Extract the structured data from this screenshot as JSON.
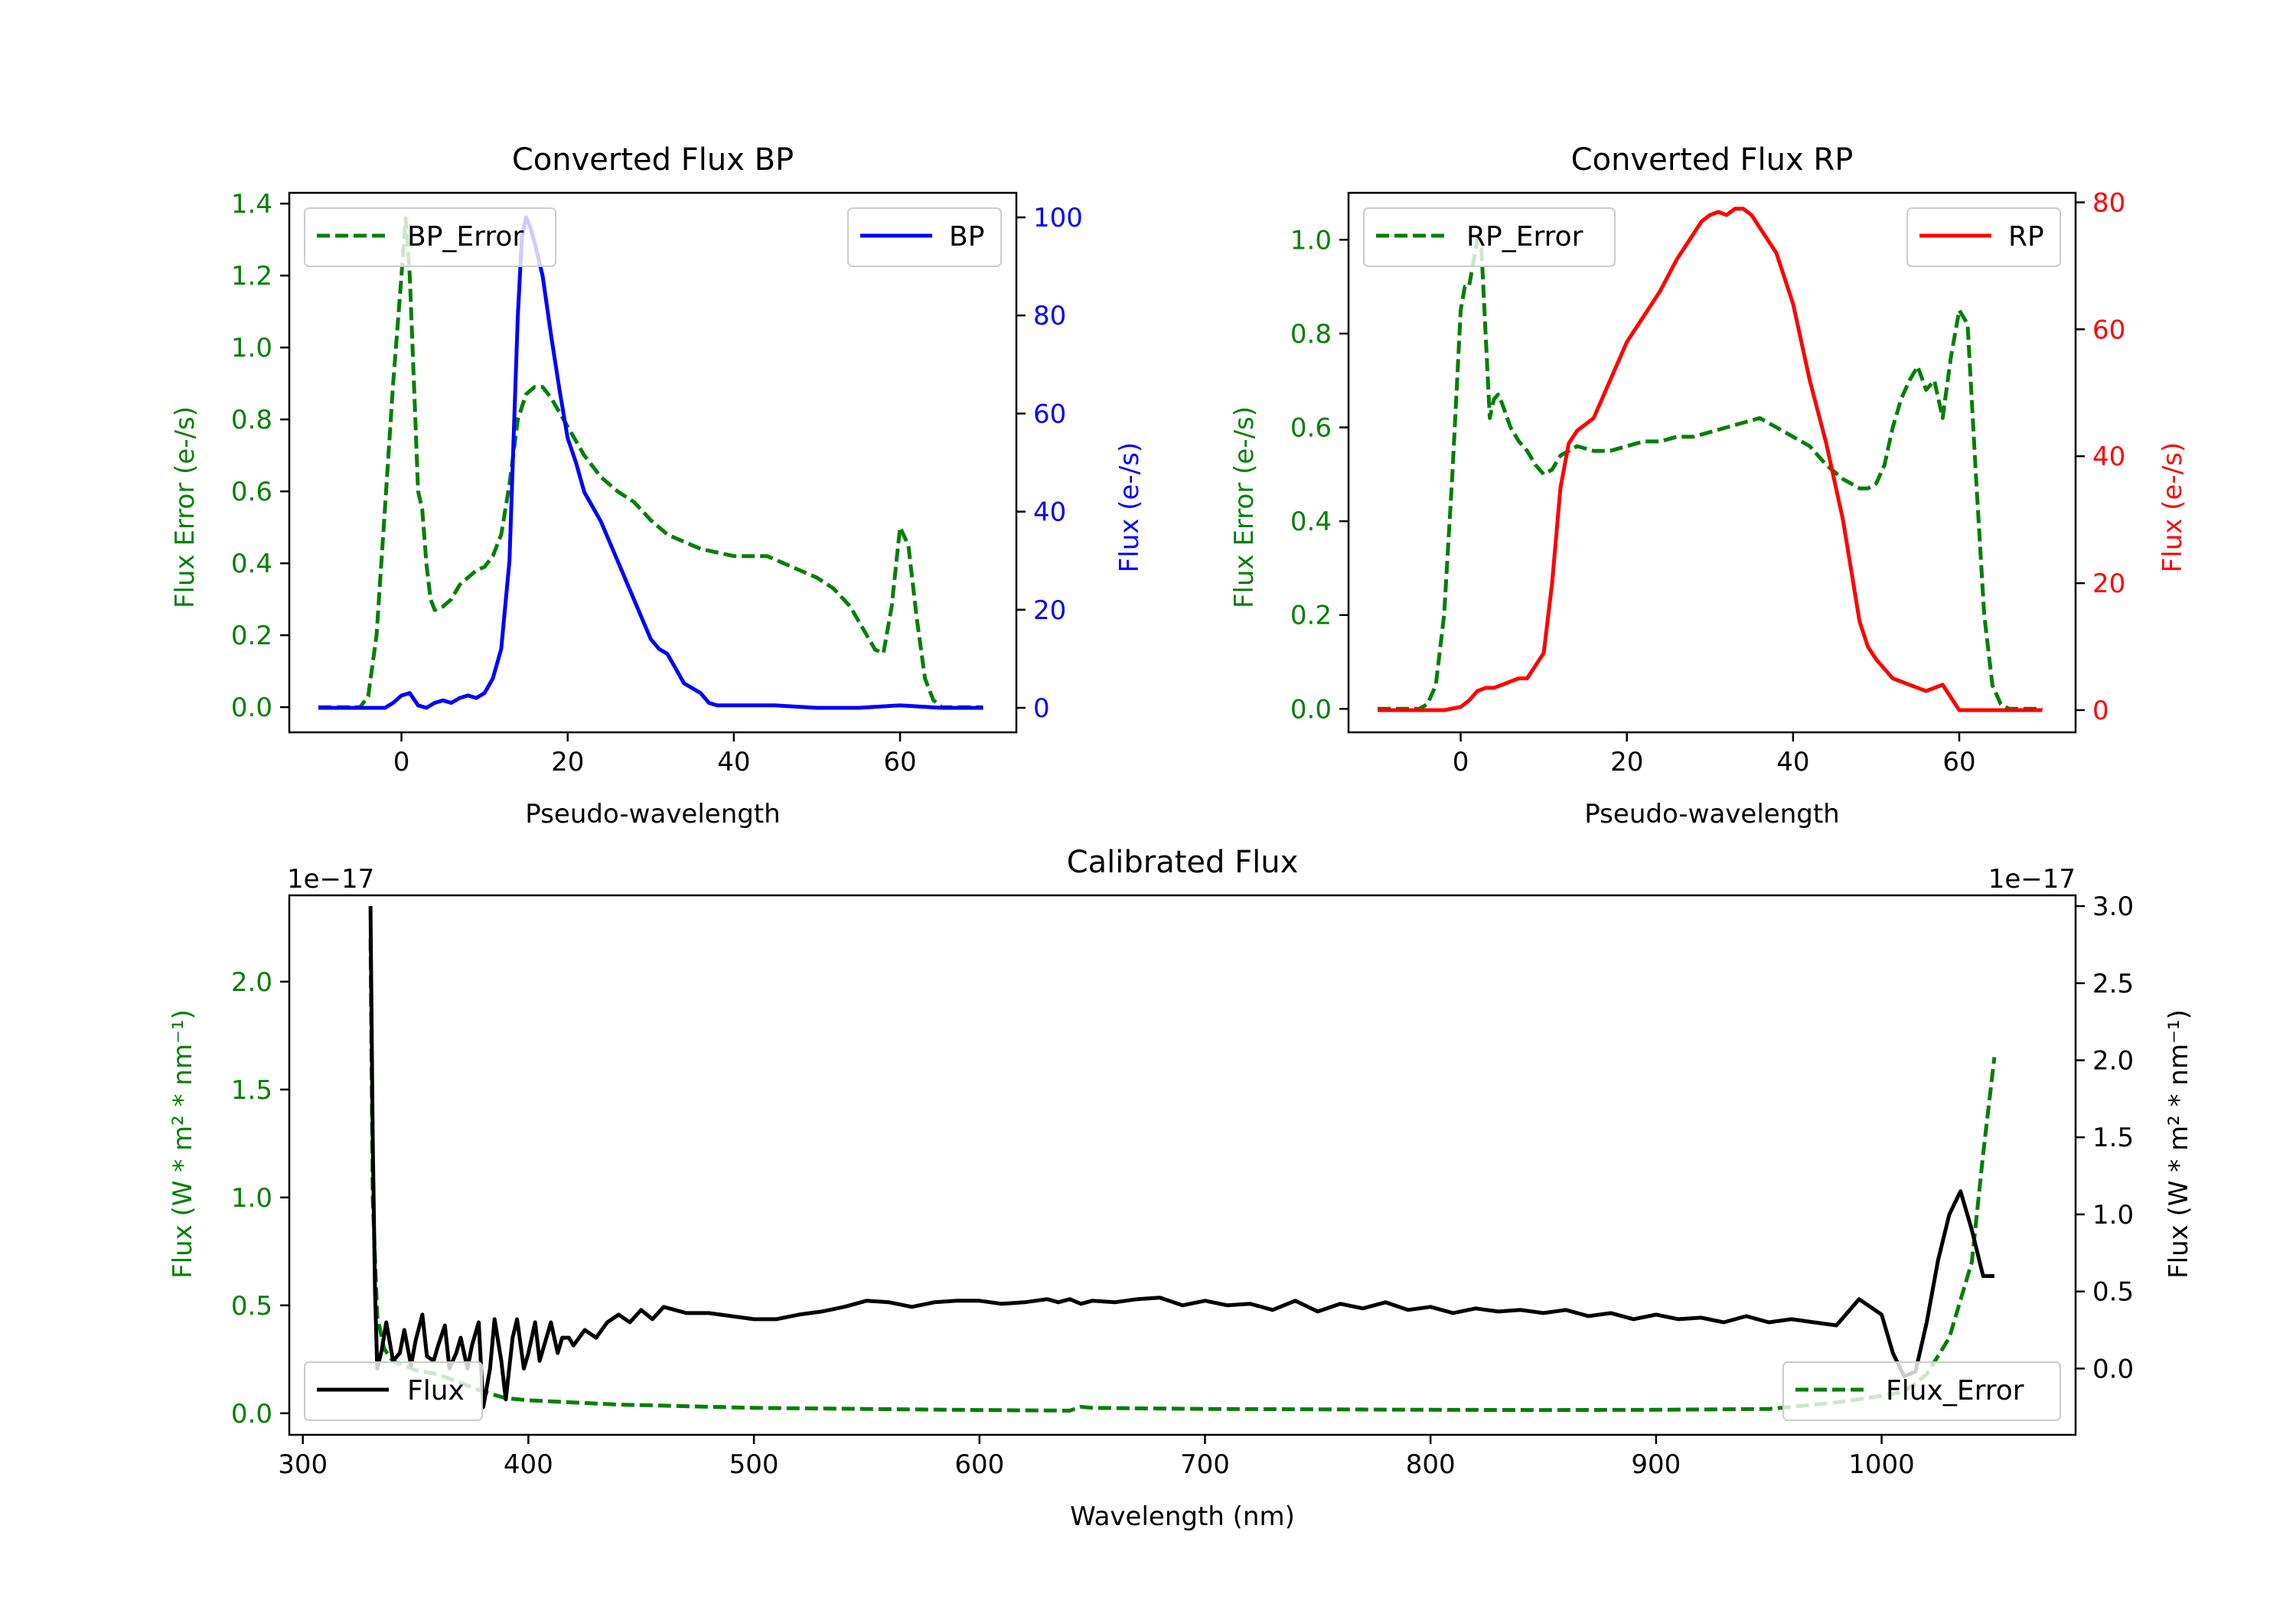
{
  "colors": {
    "error": "#008000",
    "bp": "#0000ff",
    "rp": "#ff0000",
    "flux": "#000000",
    "axis": "#000000"
  },
  "chart_data": [
    {
      "type": "line",
      "title": "Converted Flux BP",
      "xlabel": "Pseudo-wavelength",
      "ylabel_left": "Flux Error (e-/s)",
      "ylabel_right": "Flux (e-/s)",
      "xlim": [
        -13.5,
        74
      ],
      "ylim_left": [
        -0.07,
        1.43
      ],
      "ylim_right": [
        -5,
        105
      ],
      "xticks": [
        0,
        20,
        40,
        60
      ],
      "yticks_left": [
        0.0,
        0.2,
        0.4,
        0.6,
        0.8,
        1.0,
        1.2,
        1.4
      ],
      "yticks_right": [
        0,
        20,
        40,
        60,
        80,
        100
      ],
      "legend_left": "top-left",
      "legend_right": "top-right",
      "series": [
        {
          "name": "BP_Error",
          "axis": "left",
          "style": "dashed",
          "color": "error",
          "x": [
            -10,
            -5,
            -4,
            -3,
            -2,
            -1,
            0,
            0.5,
            1,
            1.5,
            2,
            2.5,
            3,
            3.5,
            4,
            5,
            6,
            7,
            8,
            9,
            10,
            11,
            12,
            13,
            14,
            15,
            16,
            17,
            18,
            19,
            20,
            22,
            24,
            26,
            28,
            30,
            32,
            34,
            36,
            38,
            40,
            42,
            44,
            46,
            48,
            50,
            52,
            54,
            55,
            56,
            57,
            58,
            59,
            60,
            61,
            62,
            63,
            64,
            65,
            70
          ],
          "y": [
            0,
            0,
            0.03,
            0.2,
            0.55,
            0.9,
            1.2,
            1.36,
            1.2,
            0.9,
            0.6,
            0.55,
            0.4,
            0.3,
            0.27,
            0.28,
            0.3,
            0.34,
            0.36,
            0.38,
            0.39,
            0.42,
            0.48,
            0.62,
            0.8,
            0.87,
            0.89,
            0.89,
            0.86,
            0.82,
            0.78,
            0.7,
            0.64,
            0.6,
            0.57,
            0.52,
            0.48,
            0.46,
            0.44,
            0.43,
            0.42,
            0.42,
            0.42,
            0.4,
            0.38,
            0.36,
            0.33,
            0.28,
            0.24,
            0.2,
            0.16,
            0.15,
            0.28,
            0.5,
            0.45,
            0.25,
            0.08,
            0.02,
            0,
            0
          ]
        },
        {
          "name": "BP",
          "axis": "right",
          "style": "solid",
          "color": "bp",
          "x": [
            -10,
            -2,
            -1,
            0,
            1,
            2,
            3,
            4,
            5,
            6,
            7,
            8,
            9,
            10,
            11,
            12,
            13,
            13.5,
            14,
            14.5,
            15,
            15.5,
            16,
            17,
            18,
            19,
            20,
            21,
            22,
            24,
            26,
            28,
            30,
            31,
            32,
            33,
            34,
            35,
            36,
            37,
            38,
            40,
            45,
            50,
            55,
            60,
            65,
            70
          ],
          "y": [
            0,
            0,
            1,
            2.5,
            3,
            0.5,
            0,
            1,
            1.5,
            1,
            2,
            2.5,
            2,
            3,
            6,
            12,
            30,
            55,
            80,
            96,
            100,
            98,
            95,
            88,
            76,
            65,
            55,
            50,
            44,
            38,
            30,
            22,
            14,
            12,
            11,
            8,
            5,
            4,
            3,
            1,
            0.5,
            0.5,
            0.5,
            0,
            0,
            0.5,
            0,
            0
          ]
        }
      ]
    },
    {
      "type": "line",
      "title": "Converted Flux RP",
      "xlabel": "Pseudo-wavelength",
      "ylabel_left": "Flux Error (e-/s)",
      "ylabel_right": "Flux (e-/s)",
      "xlim": [
        -13.5,
        74
      ],
      "ylim_left": [
        -0.05,
        1.1
      ],
      "ylim_right": [
        -3.5,
        81.5
      ],
      "xticks": [
        0,
        20,
        40,
        60
      ],
      "yticks_left": [
        0.0,
        0.2,
        0.4,
        0.6,
        0.8,
        1.0
      ],
      "yticks_right": [
        0,
        20,
        40,
        60,
        80
      ],
      "legend_left": "top-left",
      "legend_right": "top-right",
      "series": [
        {
          "name": "RP_Error",
          "axis": "left",
          "style": "dashed",
          "color": "error",
          "x": [
            -10,
            -5,
            -4,
            -3,
            -2,
            -1,
            0,
            0.5,
            1,
            1.5,
            2,
            2.5,
            3,
            3.5,
            4,
            4.5,
            5,
            6,
            7,
            8,
            9,
            10,
            11,
            12,
            14,
            16,
            18,
            20,
            22,
            24,
            26,
            28,
            30,
            32,
            34,
            36,
            38,
            40,
            42,
            44,
            46,
            47,
            48,
            49,
            50,
            51,
            52,
            53,
            54,
            55,
            56,
            57,
            58,
            59,
            60,
            61,
            62,
            63,
            64,
            65,
            66,
            70
          ],
          "y": [
            0,
            0,
            0.01,
            0.05,
            0.2,
            0.5,
            0.85,
            0.9,
            0.9,
            0.95,
            1.0,
            0.98,
            0.8,
            0.62,
            0.66,
            0.67,
            0.65,
            0.6,
            0.57,
            0.55,
            0.52,
            0.5,
            0.51,
            0.54,
            0.56,
            0.55,
            0.55,
            0.56,
            0.57,
            0.57,
            0.58,
            0.58,
            0.59,
            0.6,
            0.61,
            0.62,
            0.6,
            0.58,
            0.56,
            0.52,
            0.49,
            0.48,
            0.47,
            0.47,
            0.48,
            0.52,
            0.6,
            0.66,
            0.7,
            0.73,
            0.68,
            0.7,
            0.62,
            0.75,
            0.85,
            0.82,
            0.5,
            0.2,
            0.05,
            0.01,
            0,
            0
          ]
        },
        {
          "name": "RP",
          "axis": "right",
          "style": "solid",
          "color": "rp",
          "x": [
            -10,
            -2,
            0,
            1,
            2,
            3,
            4,
            5,
            6,
            7,
            8,
            9,
            10,
            11,
            12,
            13,
            14,
            16,
            18,
            20,
            22,
            24,
            26,
            27,
            28,
            29,
            30,
            31,
            32,
            33,
            34,
            35,
            36,
            38,
            40,
            42,
            44,
            46,
            47,
            48,
            49,
            50,
            52,
            54,
            56,
            58,
            59,
            60,
            62,
            65,
            70
          ],
          "y": [
            0,
            0,
            0.5,
            1.5,
            3,
            3.5,
            3.5,
            4,
            4.5,
            5,
            5,
            7,
            9,
            20,
            35,
            42,
            44,
            46,
            52,
            58,
            62,
            66,
            71,
            73,
            75,
            77,
            78,
            78.5,
            78,
            79,
            79,
            78,
            76,
            72,
            64,
            52,
            42,
            30,
            22,
            14,
            10,
            8,
            5,
            4,
            3,
            4,
            2,
            0,
            0,
            0,
            0
          ]
        }
      ]
    },
    {
      "type": "line",
      "title": "Calibrated Flux",
      "xlabel": "Wavelength (nm)",
      "ylabel_left": "Flux (W * m² * nm⁻¹)",
      "ylabel_right": "Flux (W * m² * nm⁻¹)",
      "offset_left": "1e−17",
      "offset_right": "1e−17",
      "xlim": [
        294,
        1086
      ],
      "ylim_left": [
        -0.1,
        2.4
      ],
      "ylim_right": [
        -0.43,
        3.07
      ],
      "xticks": [
        300,
        400,
        500,
        600,
        700,
        800,
        900,
        1000
      ],
      "yticks_left": [
        0.0,
        0.5,
        1.0,
        1.5,
        2.0
      ],
      "yticks_right": [
        0.0,
        0.5,
        1.0,
        1.5,
        2.0,
        2.5,
        3.0
      ],
      "legend_left": "bottom-left",
      "legend_right": "bottom-right",
      "series": [
        {
          "name": "Flux_Error",
          "axis": "left",
          "style": "dashed",
          "color": "error",
          "x": [
            330,
            331,
            333,
            336,
            340,
            350,
            360,
            370,
            380,
            390,
            400,
            420,
            440,
            460,
            500,
            550,
            600,
            640,
            645,
            650,
            700,
            750,
            800,
            850,
            900,
            950,
            980,
            1000,
            1010,
            1020,
            1030,
            1040,
            1045,
            1050
          ],
          "y": [
            2.2,
            1.0,
            0.45,
            0.3,
            0.24,
            0.2,
            0.18,
            0.14,
            0.1,
            0.07,
            0.06,
            0.05,
            0.04,
            0.035,
            0.025,
            0.02,
            0.015,
            0.012,
            0.03,
            0.025,
            0.02,
            0.018,
            0.016,
            0.015,
            0.016,
            0.02,
            0.05,
            0.08,
            0.1,
            0.18,
            0.35,
            0.7,
            1.2,
            1.65
          ]
        },
        {
          "name": "Flux",
          "axis": "right",
          "style": "solid",
          "color": "flux",
          "x": [
            330,
            331,
            332,
            333,
            335,
            337,
            340,
            343,
            345,
            348,
            350,
            353,
            355,
            358,
            360,
            363,
            365,
            368,
            370,
            373,
            375,
            378,
            380,
            383,
            385,
            388,
            390,
            393,
            395,
            398,
            400,
            403,
            405,
            408,
            410,
            413,
            415,
            418,
            420,
            425,
            430,
            435,
            440,
            445,
            450,
            455,
            460,
            465,
            470,
            480,
            490,
            500,
            510,
            520,
            530,
            540,
            550,
            560,
            570,
            580,
            590,
            600,
            610,
            620,
            630,
            635,
            640,
            645,
            650,
            660,
            670,
            680,
            690,
            700,
            710,
            720,
            730,
            740,
            750,
            760,
            770,
            780,
            790,
            800,
            810,
            820,
            830,
            840,
            850,
            860,
            870,
            880,
            890,
            900,
            910,
            920,
            930,
            940,
            950,
            960,
            970,
            980,
            990,
            1000,
            1005,
            1010,
            1015,
            1020,
            1025,
            1030,
            1035,
            1040,
            1045,
            1050
          ],
          "y": [
            3.0,
            1.5,
            0.5,
            0.0,
            0.12,
            0.3,
            0.05,
            0.1,
            0.25,
            0.02,
            0.18,
            0.35,
            0.08,
            0.05,
            0.15,
            0.28,
            0.0,
            0.1,
            0.2,
            0.0,
            0.15,
            0.3,
            -0.25,
            0.0,
            0.32,
            0.05,
            -0.2,
            0.2,
            0.32,
            0.0,
            0.1,
            0.3,
            0.05,
            0.2,
            0.3,
            0.1,
            0.2,
            0.2,
            0.15,
            0.25,
            0.2,
            0.3,
            0.35,
            0.3,
            0.38,
            0.32,
            0.4,
            0.38,
            0.36,
            0.36,
            0.34,
            0.32,
            0.32,
            0.35,
            0.37,
            0.4,
            0.44,
            0.43,
            0.4,
            0.43,
            0.44,
            0.44,
            0.42,
            0.43,
            0.45,
            0.43,
            0.45,
            0.42,
            0.44,
            0.43,
            0.45,
            0.46,
            0.41,
            0.44,
            0.41,
            0.42,
            0.38,
            0.44,
            0.37,
            0.42,
            0.39,
            0.43,
            0.38,
            0.4,
            0.36,
            0.39,
            0.37,
            0.38,
            0.36,
            0.38,
            0.34,
            0.36,
            0.32,
            0.35,
            0.32,
            0.33,
            0.3,
            0.34,
            0.3,
            0.32,
            0.3,
            0.28,
            0.45,
            0.35,
            0.1,
            -0.05,
            -0.02,
            0.3,
            0.7,
            1.0,
            1.15,
            0.9,
            0.6,
            0.6
          ]
        }
      ]
    }
  ]
}
